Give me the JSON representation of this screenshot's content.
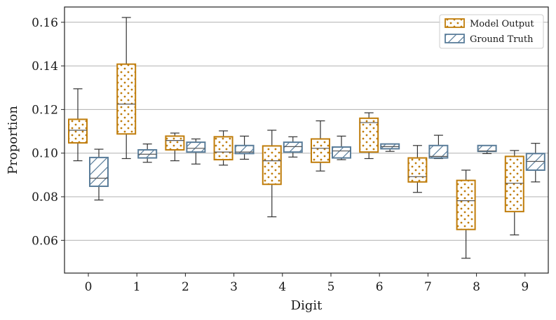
{
  "chart_data": {
    "type": "boxplot",
    "xlabel": "Digit",
    "ylabel": "Proportion",
    "ylim": [
      0.045,
      0.167
    ],
    "yticks": [
      0.06,
      0.08,
      0.1,
      0.12,
      0.14,
      0.16
    ],
    "ytick_labels": [
      "0.06",
      "0.08",
      "0.10",
      "0.12",
      "0.14",
      "0.16"
    ],
    "categories": [
      "0",
      "1",
      "2",
      "3",
      "4",
      "5",
      "6",
      "7",
      "8",
      "9"
    ],
    "grid": "horizontal",
    "legend_position": "top-right",
    "series": [
      {
        "name": "Model Output",
        "color": "#c07d0b",
        "pattern": "dots",
        "boxes": [
          {
            "whislo": 0.0965,
            "q1": 0.1047,
            "med": 0.1105,
            "q3": 0.1155,
            "whishi": 0.1295
          },
          {
            "whislo": 0.0975,
            "q1": 0.1088,
            "med": 0.1225,
            "q3": 0.1408,
            "whishi": 0.1622
          },
          {
            "whislo": 0.0965,
            "q1": 0.1015,
            "med": 0.1058,
            "q3": 0.1078,
            "whishi": 0.1092
          },
          {
            "whislo": 0.0945,
            "q1": 0.097,
            "med": 0.1005,
            "q3": 0.1075,
            "whishi": 0.1102
          },
          {
            "whislo": 0.0708,
            "q1": 0.0857,
            "med": 0.0965,
            "q3": 0.1033,
            "whishi": 0.1105
          },
          {
            "whislo": 0.0918,
            "q1": 0.0958,
            "med": 0.1022,
            "q3": 0.1065,
            "whishi": 0.1148
          },
          {
            "whislo": 0.0975,
            "q1": 0.1005,
            "med": 0.114,
            "q3": 0.116,
            "whishi": 0.1185
          },
          {
            "whislo": 0.082,
            "q1": 0.0868,
            "med": 0.0892,
            "q3": 0.0978,
            "whishi": 0.1035
          },
          {
            "whislo": 0.0518,
            "q1": 0.065,
            "med": 0.0782,
            "q3": 0.0875,
            "whishi": 0.0922
          },
          {
            "whislo": 0.0625,
            "q1": 0.0732,
            "med": 0.0862,
            "q3": 0.0985,
            "whishi": 0.1012
          }
        ]
      },
      {
        "name": "Ground Truth",
        "color": "#5a7d9a",
        "pattern": "hatch",
        "boxes": [
          {
            "whislo": 0.0785,
            "q1": 0.0848,
            "med": 0.0885,
            "q3": 0.098,
            "whishi": 0.1018
          },
          {
            "whislo": 0.0958,
            "q1": 0.0978,
            "med": 0.0995,
            "q3": 0.1015,
            "whishi": 0.1042
          },
          {
            "whislo": 0.095,
            "q1": 0.1005,
            "med": 0.1022,
            "q3": 0.105,
            "whishi": 0.1065
          },
          {
            "whislo": 0.0972,
            "q1": 0.0998,
            "med": 0.1005,
            "q3": 0.1035,
            "whishi": 0.1078
          },
          {
            "whislo": 0.0982,
            "q1": 0.1005,
            "med": 0.103,
            "q3": 0.105,
            "whishi": 0.1075
          },
          {
            "whislo": 0.097,
            "q1": 0.0978,
            "med": 0.101,
            "q3": 0.1028,
            "whishi": 0.1078
          },
          {
            "whislo": 0.1008,
            "q1": 0.102,
            "med": 0.103,
            "q3": 0.1042,
            "whishi": 0.1042
          },
          {
            "whislo": 0.0975,
            "q1": 0.0978,
            "med": 0.0985,
            "q3": 0.1035,
            "whishi": 0.1082
          },
          {
            "whislo": 0.0998,
            "q1": 0.1008,
            "med": 0.101,
            "q3": 0.1035,
            "whishi": 0.1035
          },
          {
            "whislo": 0.0868,
            "q1": 0.0922,
            "med": 0.0962,
            "q3": 0.0998,
            "whishi": 0.1045
          }
        ]
      }
    ]
  }
}
